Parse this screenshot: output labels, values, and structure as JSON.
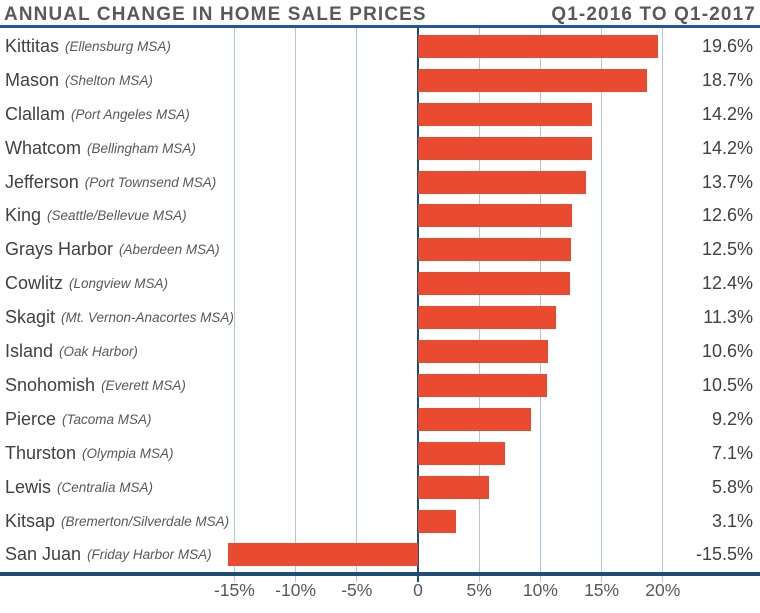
{
  "header": {
    "title": "ANNUAL CHANGE IN HOME SALE PRICES",
    "period": "Q1-2016 TO Q1-2017"
  },
  "chart_data": {
    "type": "bar",
    "orientation": "horizontal",
    "title": "ANNUAL CHANGE IN HOME SALE PRICES",
    "subtitle": "Q1-2016 TO Q1-2017",
    "xlabel": "",
    "ylabel": "",
    "xlim": [
      -17.5,
      22.5
    ],
    "grid": true,
    "legend": "none",
    "colors": {
      "bar": "#EA4A2F",
      "axis": "#1D4E79",
      "grid": "#AEC8E4",
      "header_rule": "#2156A5",
      "text": "#414042",
      "muted_text": "#58595B"
    },
    "x_ticks": [
      {
        "value": -15,
        "label": "-15%"
      },
      {
        "value": -10,
        "label": "-10%"
      },
      {
        "value": -5,
        "label": "-5%"
      },
      {
        "value": 0,
        "label": "0"
      },
      {
        "value": 5,
        "label": "5%"
      },
      {
        "value": 10,
        "label": "10%"
      },
      {
        "value": 15,
        "label": "15%"
      },
      {
        "value": 20,
        "label": "20%"
      }
    ],
    "rows": [
      {
        "county": "Kittitas",
        "msa": "(Ellensburg MSA)",
        "value": 19.6,
        "label": "19.6%"
      },
      {
        "county": "Mason",
        "msa": "(Shelton MSA)",
        "value": 18.7,
        "label": "18.7%"
      },
      {
        "county": "Clallam",
        "msa": "(Port Angeles MSA)",
        "value": 14.2,
        "label": "14.2%"
      },
      {
        "county": "Whatcom",
        "msa": "(Bellingham MSA)",
        "value": 14.2,
        "label": "14.2%"
      },
      {
        "county": "Jefferson",
        "msa": "(Port Townsend MSA)",
        "value": 13.7,
        "label": "13.7%"
      },
      {
        "county": "King",
        "msa": "(Seattle/Bellevue MSA)",
        "value": 12.6,
        "label": "12.6%"
      },
      {
        "county": "Grays Harbor",
        "msa": "(Aberdeen MSA)",
        "value": 12.5,
        "label": "12.5%"
      },
      {
        "county": "Cowlitz",
        "msa": "(Longview MSA)",
        "value": 12.4,
        "label": "12.4%"
      },
      {
        "county": "Skagit",
        "msa": "(Mt. Vernon-Anacortes MSA)",
        "value": 11.3,
        "label": "11.3%"
      },
      {
        "county": "Island",
        "msa": "(Oak Harbor)",
        "value": 10.6,
        "label": "10.6%"
      },
      {
        "county": "Snohomish",
        "msa": "(Everett MSA)",
        "value": 10.5,
        "label": "10.5%"
      },
      {
        "county": "Pierce",
        "msa": "(Tacoma MSA)",
        "value": 9.2,
        "label": "9.2%"
      },
      {
        "county": "Thurston",
        "msa": "(Olympia MSA)",
        "value": 7.1,
        "label": "7.1%"
      },
      {
        "county": "Lewis",
        "msa": "(Centralia MSA)",
        "value": 5.8,
        "label": "5.8%"
      },
      {
        "county": "Kitsap",
        "msa": "(Bremerton/Silverdale MSA)",
        "value": 3.1,
        "label": "3.1%"
      },
      {
        "county": "San Juan",
        "msa": "(Friday Harbor MSA)",
        "value": -15.5,
        "label": "-15.5%"
      }
    ]
  }
}
